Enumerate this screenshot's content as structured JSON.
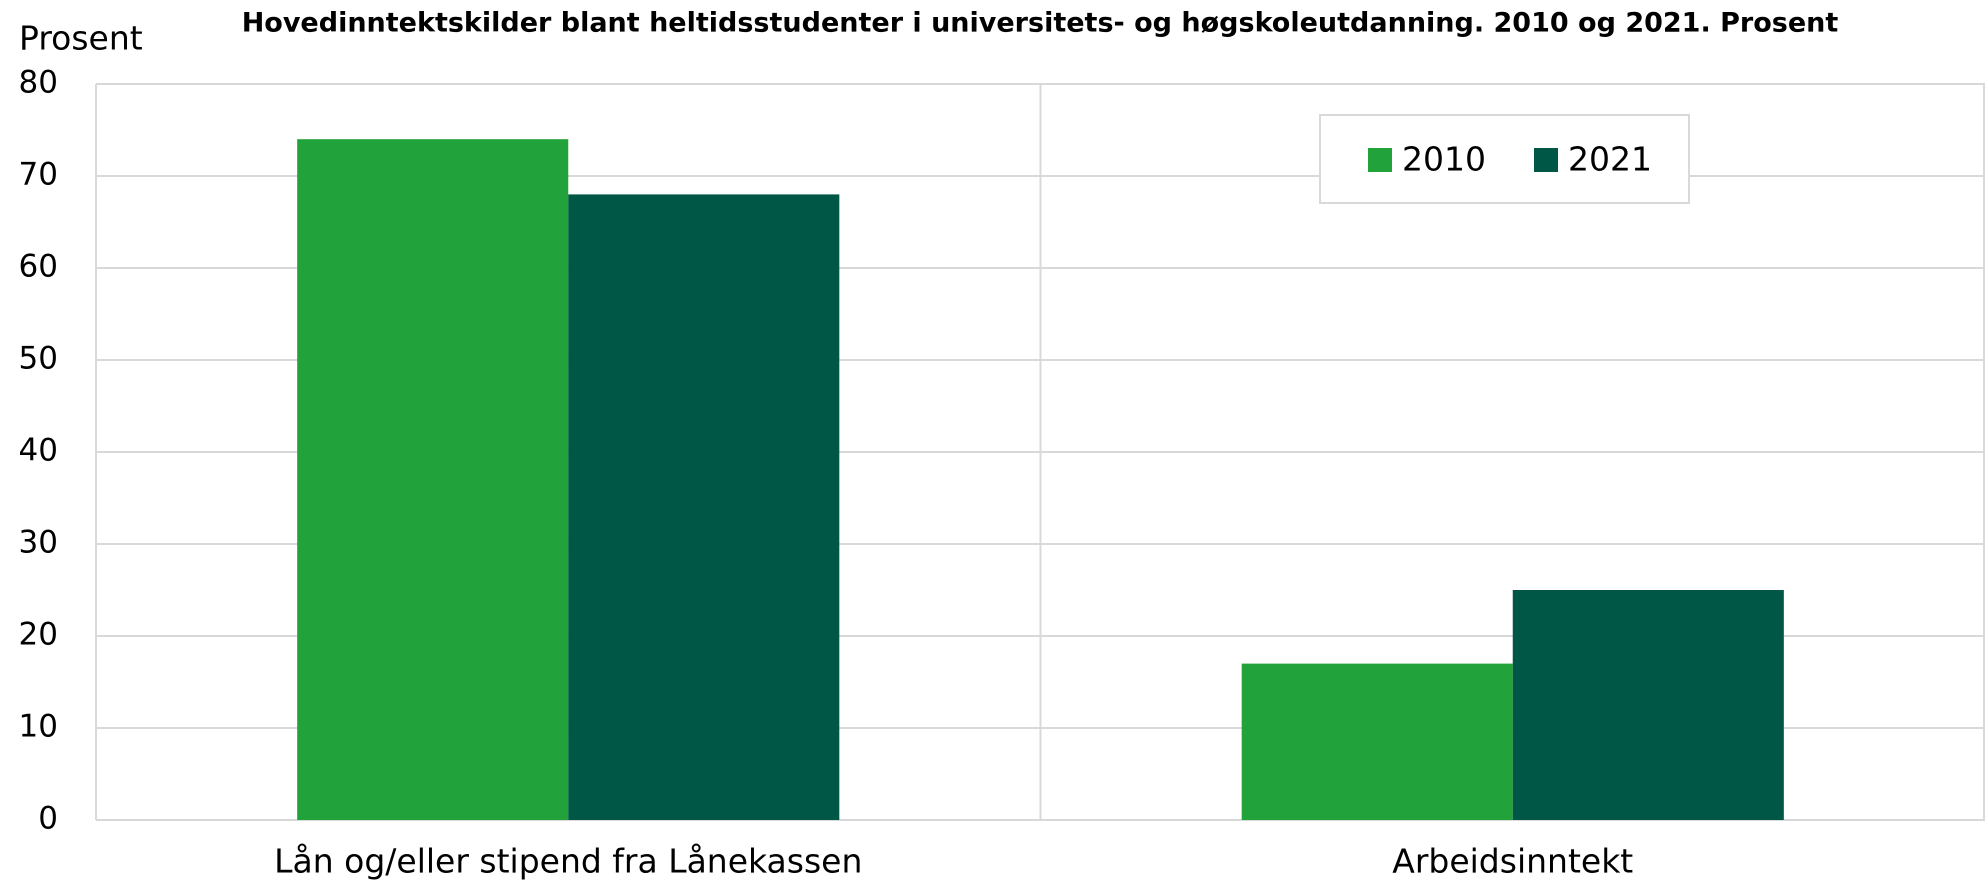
{
  "chart_data": {
    "type": "bar",
    "title": "Hovedinntektskilder blant heltidsstudenter i universitets- og høgskoleutdanning. 2010 og 2021. Prosent",
    "y_label": "Prosent",
    "categories": [
      "Lån og/eller stipend fra Lånekassen",
      "Arbeidsinntekt"
    ],
    "series": [
      {
        "name": "2010",
        "color": "#21a23a",
        "values": [
          74,
          17
        ]
      },
      {
        "name": "2021",
        "color": "#005745",
        "values": [
          68,
          25
        ]
      }
    ],
    "ylim": [
      0,
      80
    ],
    "yticks": [
      0,
      10,
      20,
      30,
      40,
      50,
      60,
      70,
      80
    ],
    "grid": true,
    "legend": "upper right"
  }
}
